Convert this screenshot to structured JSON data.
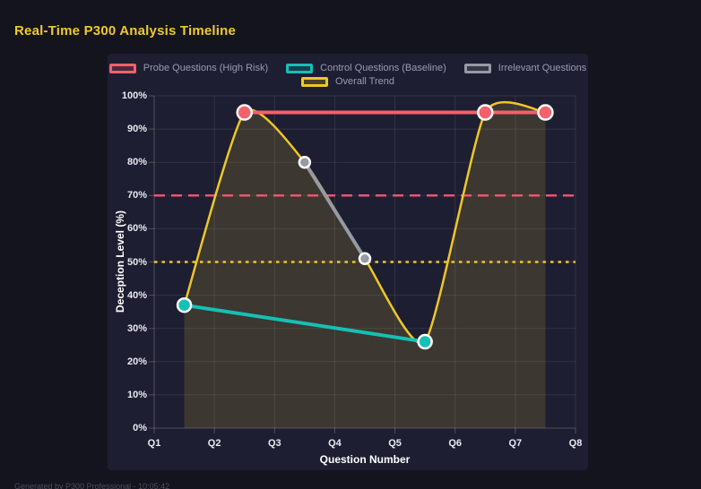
{
  "title": "Real-Time P300 Analysis Timeline",
  "footer": "Generated by P300 Professional - 10:05:42",
  "colors": {
    "page_bg": "#14141f",
    "panel_bg": "#1e1e32",
    "title": "#f0c929",
    "grid": "rgba(255,255,255,0.09)",
    "axis_line": "rgba(255,255,255,0.22)",
    "tick_label": "#e9e9f2",
    "axis_title": "#ffffff",
    "legend_text": "#9a9ab2",
    "probe": "#f4606c",
    "control": "#15c0b4",
    "irrelevant": "#969aa2",
    "trend": "#eec727",
    "trend_fill": "rgba(238,199,39,0.15)",
    "threshold_high": "#ef5370",
    "threshold_mid": "#eec727",
    "marker_stroke": "#ffffff"
  },
  "legend": [
    {
      "id": "probe",
      "label": "Probe Questions (High Risk)",
      "color": "#f4606c"
    },
    {
      "id": "control",
      "label": "Control Questions (Baseline)",
      "color": "#15c0b4"
    },
    {
      "id": "irrelevant",
      "label": "Irrelevant Questions",
      "color": "#969aa2"
    },
    {
      "id": "trend",
      "label": "Overall Trend",
      "color": "#eec727"
    }
  ],
  "chart_data": {
    "type": "line",
    "title": "Real-Time P300 Analysis Timeline",
    "xlabel": "Question Number",
    "ylabel": "Deception Level (%)",
    "x_ticks": [
      "Q1",
      "Q2",
      "Q3",
      "Q4",
      "Q5",
      "Q6",
      "Q7",
      "Q8"
    ],
    "x_range": [
      1,
      8
    ],
    "y_ticks": [
      "0%",
      "10%",
      "20%",
      "30%",
      "40%",
      "50%",
      "60%",
      "70%",
      "80%",
      "90%",
      "100%"
    ],
    "y_tick_values": [
      0,
      10,
      20,
      30,
      40,
      50,
      60,
      70,
      80,
      90,
      100
    ],
    "ylim": [
      0,
      100
    ],
    "grid": true,
    "legend_position": "top",
    "series": [
      {
        "id": "trend",
        "name": "Overall Trend",
        "color": "#eec727",
        "smooth": true,
        "area": true,
        "line_width": 2.5,
        "point_radius": 0,
        "points": [
          {
            "x": 1.5,
            "y": 37
          },
          {
            "x": 2.5,
            "y": 95
          },
          {
            "x": 3.5,
            "y": 80
          },
          {
            "x": 4.5,
            "y": 51
          },
          {
            "x": 5.5,
            "y": 26
          },
          {
            "x": 6.5,
            "y": 95
          },
          {
            "x": 7.5,
            "y": 95
          }
        ]
      },
      {
        "id": "irrelevant",
        "name": "Irrelevant Questions",
        "color": "#969aa2",
        "smooth": false,
        "area": false,
        "line_width": 4,
        "point_radius": 6,
        "points": [
          {
            "x": 3.5,
            "y": 80
          },
          {
            "x": 4.5,
            "y": 51
          }
        ]
      },
      {
        "id": "control",
        "name": "Control Questions (Baseline)",
        "color": "#15c0b4",
        "smooth": false,
        "area": false,
        "line_width": 4,
        "point_radius": 7.5,
        "points": [
          {
            "x": 1.5,
            "y": 37
          },
          {
            "x": 5.5,
            "y": 26
          }
        ]
      },
      {
        "id": "probe",
        "name": "Probe Questions (High Risk)",
        "color": "#f4606c",
        "smooth": false,
        "area": false,
        "line_width": 4,
        "point_radius": 8,
        "points": [
          {
            "x": 2.5,
            "y": 95
          },
          {
            "x": 6.5,
            "y": 95
          },
          {
            "x": 7.5,
            "y": 95
          }
        ]
      }
    ],
    "thresholds": [
      {
        "value": 70,
        "color": "#ef5370",
        "style": "dashed"
      },
      {
        "value": 50,
        "color": "#eec727",
        "style": "dotted"
      }
    ]
  }
}
